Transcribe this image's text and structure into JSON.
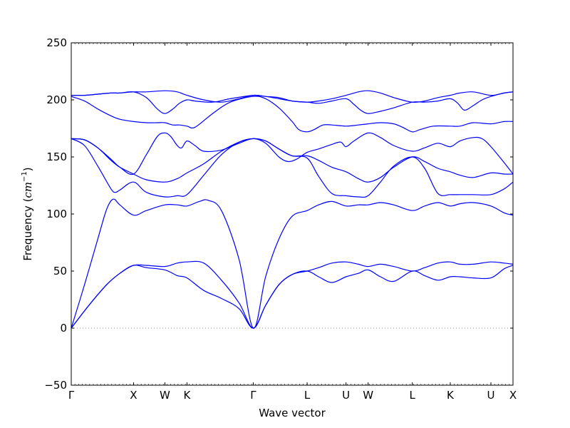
{
  "chart_data": {
    "type": "line",
    "title": "",
    "xlabel": "Wave vector",
    "ylabel_text": "Frequency (",
    "ylabel_unit": "cm",
    "ylabel_exp": "−1",
    "ylabel_close": ")",
    "ylim": [
      -50,
      250
    ],
    "yticks": [
      -50,
      0,
      50,
      100,
      150,
      200,
      250
    ],
    "xlim": [
      0,
      100
    ],
    "grid": false,
    "line_color": "#0000ff",
    "zero_line_color": "#808080",
    "xticks": [
      {
        "x": 0,
        "label": "Γ"
      },
      {
        "x": 14.1,
        "label": "X"
      },
      {
        "x": 21.2,
        "label": "W"
      },
      {
        "x": 26.2,
        "label": "K"
      },
      {
        "x": 41.2,
        "label": "Γ"
      },
      {
        "x": 53.4,
        "label": "L"
      },
      {
        "x": 62.2,
        "label": "U"
      },
      {
        "x": 67.2,
        "label": "W"
      },
      {
        "x": 77.2,
        "label": "L"
      },
      {
        "x": 85.8,
        "label": "K"
      },
      {
        "x": 95.0,
        "label": "U"
      },
      {
        "x": 100,
        "label": "X"
      }
    ],
    "series": [
      {
        "x": [
          0,
          4,
          8,
          11,
          14.1,
          17,
          21.2,
          24,
          26.2,
          30,
          34,
          38,
          41.2,
          44,
          47,
          50,
          53.4,
          56,
          59,
          62.2,
          65,
          67.2,
          70,
          73,
          77.2,
          80,
          83,
          85.8,
          88,
          91,
          95,
          98,
          100
        ],
        "y": [
          0,
          20,
          38,
          48,
          55,
          53,
          51,
          46,
          44,
          33,
          26,
          17,
          0,
          20,
          38,
          47,
          50,
          45,
          40,
          45,
          48,
          51,
          45,
          41,
          50,
          46,
          42,
          45,
          45,
          44,
          44,
          52,
          55
        ]
      },
      {
        "x": [
          0,
          4,
          8,
          11,
          14.1,
          17,
          21.2,
          24,
          26.2,
          30,
          34,
          38,
          41.2,
          44,
          47,
          50,
          53.4,
          56,
          59,
          62.2,
          65,
          67.2,
          70,
          73,
          77.2,
          80,
          83,
          85.8,
          88,
          91,
          95,
          98,
          100
        ],
        "y": [
          0,
          20,
          38,
          48,
          55,
          55,
          54,
          57,
          58,
          57,
          42,
          22,
          0,
          20,
          38,
          47,
          50,
          53,
          57,
          58,
          56,
          54,
          56,
          54,
          50,
          53,
          57,
          58,
          56,
          56,
          58,
          57,
          56
        ]
      },
      {
        "x": [
          0,
          3,
          6,
          8,
          9.5,
          11,
          14.1,
          17,
          21.2,
          24,
          26.2,
          29,
          31,
          34,
          38,
          41.2,
          44,
          47,
          50,
          53.4,
          56,
          59,
          62.2,
          65,
          67.2,
          70,
          73,
          77.2,
          80,
          83,
          85.8,
          88,
          91,
          95,
          98,
          100
        ],
        "y": [
          0,
          38,
          78,
          104,
          113,
          108,
          99,
          103,
          108,
          108,
          107,
          111,
          112,
          103,
          60,
          0,
          45,
          78,
          98,
          103,
          108,
          111,
          107,
          108,
          108,
          110,
          108,
          103,
          107,
          110,
          107,
          109,
          110,
          107,
          101,
          99
        ]
      },
      {
        "x": [
          0,
          3,
          6,
          9,
          10,
          11,
          14.1,
          17,
          21.2,
          24,
          26.2,
          30,
          34,
          38,
          41.2,
          44,
          47,
          50,
          53.4,
          56,
          59,
          62.2,
          65,
          67.2,
          70,
          73,
          77.2,
          80,
          83,
          85.8,
          88,
          91,
          95,
          98,
          100
        ],
        "y": [
          166,
          160,
          142,
          122,
          119,
          121,
          128,
          119,
          115,
          116,
          117,
          134,
          152,
          163,
          166,
          164,
          157,
          151,
          149,
          133,
          118,
          116,
          115,
          116,
          128,
          142,
          150,
          140,
          118,
          117,
          117,
          117,
          117,
          122,
          128
        ]
      },
      {
        "x": [
          0,
          3,
          6,
          9,
          11,
          14.1,
          17,
          21.2,
          24,
          26.2,
          30,
          34,
          38,
          41.2,
          44,
          47,
          50,
          53.4,
          56,
          59,
          62.2,
          65,
          67.2,
          70,
          73,
          77.2,
          80,
          83,
          85.8,
          88,
          91,
          95,
          98,
          100
        ],
        "y": [
          166,
          165,
          158,
          147,
          141,
          135,
          130,
          128,
          131,
          136,
          144,
          155,
          163,
          166,
          164,
          157,
          151,
          151,
          147,
          141,
          137,
          131,
          128,
          132,
          141,
          150,
          146,
          140,
          137,
          134,
          132,
          136,
          135,
          135
        ]
      },
      {
        "x": [
          0,
          3,
          6,
          9,
          11,
          14.1,
          17,
          19.5,
          21.2,
          22.5,
          24,
          25,
          26.2,
          28,
          30,
          34,
          38,
          41.2,
          44,
          47,
          49,
          51,
          53.4,
          56,
          59,
          61,
          62.2,
          64,
          67.2,
          70,
          73,
          77.2,
          80,
          83,
          85.8,
          88,
          91,
          93,
          95,
          98,
          100
        ],
        "y": [
          166,
          165,
          158,
          148,
          141,
          135,
          152,
          168,
          171,
          168,
          160,
          158,
          164,
          160,
          155,
          156,
          162,
          166,
          162,
          150,
          146,
          148,
          154,
          157,
          161,
          163,
          159,
          164,
          171,
          167,
          160,
          155,
          158,
          162,
          159,
          164,
          167,
          166,
          159,
          145,
          135
        ]
      },
      {
        "x": [
          0,
          3,
          6,
          9,
          11,
          14.1,
          17,
          19.5,
          21.2,
          23,
          24.5,
          26.2,
          28,
          32,
          36,
          41.2,
          44,
          47,
          50,
          51.5,
          53.4,
          55,
          57,
          59,
          62.2,
          65,
          67.2,
          70,
          73,
          75,
          77.2,
          79,
          82,
          85.8,
          88,
          91,
          95,
          98,
          100
        ],
        "y": [
          203,
          199,
          192,
          186,
          183,
          181,
          180,
          180,
          180,
          178,
          178,
          177,
          176,
          188,
          198,
          203,
          201,
          193,
          181,
          174,
          172,
          174,
          178,
          178,
          177,
          178,
          179,
          180,
          179,
          176,
          172,
          174,
          177,
          177,
          177,
          180,
          179,
          181,
          181
        ]
      },
      {
        "x": [
          0,
          3,
          6,
          9,
          11,
          14.1,
          17,
          19.5,
          21.2,
          23,
          24.5,
          26.2,
          28,
          32,
          36,
          41.2,
          44,
          47,
          50,
          53.4,
          56,
          59,
          62.2,
          64,
          65.5,
          67.2,
          70,
          73,
          77.2,
          80,
          83,
          85.8,
          87.5,
          89,
          91,
          93,
          95,
          98,
          100
        ],
        "y": [
          204,
          204,
          205,
          206,
          206,
          207,
          202,
          192,
          188,
          192,
          197,
          200,
          199,
          198,
          201,
          204,
          203,
          202,
          199,
          198,
          197,
          199,
          201,
          196,
          191,
          188,
          190,
          193,
          198,
          198,
          199,
          201,
          197,
          191,
          195,
          200,
          203,
          206,
          207
        ]
      },
      {
        "x": [
          0,
          3,
          6,
          9,
          11,
          14.1,
          17,
          21.2,
          24,
          26.2,
          30,
          34,
          38,
          41.2,
          44,
          47,
          50,
          53.4,
          56,
          59,
          62.2,
          65,
          67.2,
          70,
          73,
          77.2,
          80,
          83,
          85.8,
          88,
          91,
          95,
          98,
          100
        ],
        "y": [
          204,
          204,
          205,
          206,
          206,
          207,
          207,
          208,
          207,
          204,
          200,
          198,
          201,
          204,
          203,
          201,
          199,
          198,
          199,
          201,
          204,
          207,
          208,
          206,
          202,
          198,
          199,
          202,
          204,
          206,
          207,
          204,
          206,
          207
        ]
      }
    ]
  }
}
